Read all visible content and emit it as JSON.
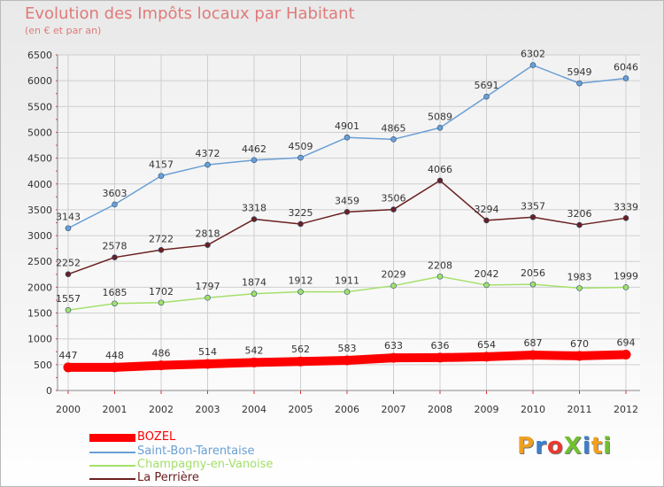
{
  "title": "Evolution des Impôts locaux par Habitant",
  "subtitle": "(en € et par an)",
  "brand": "ProXiti",
  "chart_data": {
    "type": "line",
    "x": [
      2000,
      2001,
      2002,
      2003,
      2004,
      2005,
      2006,
      2007,
      2008,
      2009,
      2010,
      2011,
      2012
    ],
    "ylim": [
      0,
      6500
    ],
    "yticks": [
      0,
      500,
      1000,
      1500,
      2000,
      2500,
      3000,
      3500,
      4000,
      4500,
      5000,
      5500,
      6000,
      6500
    ],
    "grid": true,
    "legend_position": "bottom-left",
    "series": [
      {
        "name": "BOZEL",
        "color": "#ff0000",
        "values": [
          447,
          448,
          486,
          514,
          542,
          562,
          583,
          633,
          636,
          654,
          687,
          670,
          694
        ]
      },
      {
        "name": "Saint-Bon-Tarentaise",
        "color": "#6a9fd4",
        "values": [
          3143,
          3603,
          4157,
          4372,
          4462,
          4509,
          4901,
          4865,
          5089,
          5691,
          6302,
          5949,
          6046
        ]
      },
      {
        "name": "Champagny-en-Vanoise",
        "color": "#a4e06a",
        "values": [
          1557,
          1685,
          1702,
          1797,
          1874,
          1912,
          1911,
          2029,
          2208,
          2042,
          2056,
          1983,
          1999
        ]
      },
      {
        "name": "La Perrière",
        "color": "#6b2020",
        "values": [
          2252,
          2578,
          2722,
          2818,
          3318,
          3225,
          3459,
          3506,
          4066,
          3294,
          3357,
          3206,
          3339
        ]
      }
    ]
  }
}
